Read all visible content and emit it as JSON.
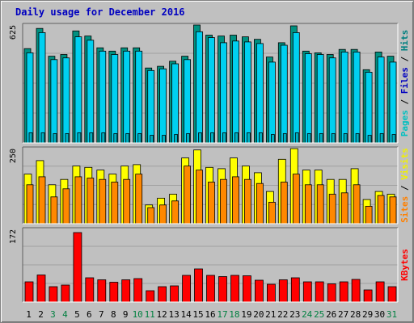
{
  "chart_data": {
    "type": "bar",
    "title": "Daily usage for December 2016",
    "categories": [
      "1",
      "2",
      "3",
      "4",
      "5",
      "6",
      "7",
      "8",
      "9",
      "10",
      "11",
      "12",
      "13",
      "14",
      "15",
      "16",
      "17",
      "18",
      "19",
      "20",
      "21",
      "22",
      "23",
      "24",
      "25",
      "26",
      "27",
      "28",
      "29",
      "30",
      "31"
    ],
    "weekend_days": [
      3,
      4,
      10,
      11,
      17,
      18,
      24,
      25,
      31
    ],
    "colors": {
      "hits": "#009080",
      "files": "#00d0f0",
      "pages": "#00b0c0",
      "visits": "#ffff00",
      "sites": "#ff8800",
      "kbytes": "#ff0000",
      "weekend_label": "#008040",
      "weekday_label": "#000000",
      "pages_label": "#00c0c0",
      "files_label": "#0000c0",
      "hits_label": "#008080",
      "sites_label": "#ff8000",
      "visits_label": "#f0f000",
      "kbytes_label": "#ff0000"
    },
    "panels": [
      {
        "id": "hits-files-pages",
        "ytick": "625",
        "ymax": 700,
        "ylabel_segments": [
          {
            "text": "Pages",
            "color_key": "pages_label"
          },
          {
            "text": " / ",
            "color_key": "weekday_label"
          },
          {
            "text": "Files",
            "color_key": "files_label"
          },
          {
            "text": " / ",
            "color_key": "weekday_label"
          },
          {
            "text": "Hits",
            "color_key": "hits_label"
          }
        ],
        "series": [
          {
            "name": "Hits",
            "color_key": "hits",
            "values": [
              560,
              680,
              515,
              525,
              665,
              635,
              565,
              545,
              565,
              565,
              445,
              455,
              485,
              515,
              700,
              640,
              635,
              640,
              630,
              615,
              510,
              595,
              695,
              545,
              535,
              525,
              555,
              555,
              435,
              540,
              515
            ]
          },
          {
            "name": "Files",
            "color_key": "files",
            "values": [
              535,
              655,
              495,
              505,
              630,
              610,
              545,
              525,
              545,
              545,
              430,
              440,
              470,
              495,
              660,
              625,
              595,
              605,
              600,
              590,
              480,
              580,
              655,
              530,
              525,
              505,
              540,
              540,
              420,
              510,
              480
            ]
          },
          {
            "name": "Pages",
            "color_key": "pages",
            "values": [
              60,
              60,
              55,
              55,
              60,
              60,
              60,
              55,
              55,
              55,
              45,
              45,
              50,
              55,
              60,
              60,
              60,
              60,
              60,
              60,
              50,
              55,
              60,
              55,
              55,
              55,
              55,
              55,
              45,
              55,
              50
            ]
          }
        ]
      },
      {
        "id": "visits-sites",
        "ytick": "250",
        "ymax": 280,
        "ylabel_segments": [
          {
            "text": "Sites",
            "color_key": "sites_label"
          },
          {
            "text": " / ",
            "color_key": "weekday_label"
          },
          {
            "text": "Visits",
            "color_key": "visits_label"
          }
        ],
        "series": [
          {
            "name": "Visits",
            "color_key": "visits",
            "values": [
              185,
              235,
              145,
              165,
              215,
              210,
              200,
              185,
              215,
              220,
              70,
              95,
              110,
              245,
              275,
              210,
              205,
              245,
              215,
              190,
              120,
              240,
              280,
              200,
              200,
              165,
              165,
              205,
              90,
              120,
              110
            ]
          },
          {
            "name": "Sites",
            "color_key": "sites",
            "values": [
              145,
              175,
              100,
              130,
              175,
              170,
              165,
              155,
              165,
              185,
              60,
              70,
              85,
              215,
              200,
              155,
              165,
              175,
              165,
              150,
              80,
              155,
              185,
              145,
              145,
              110,
              115,
              145,
              65,
              105,
              100
            ]
          }
        ]
      },
      {
        "id": "kbytes",
        "ytick": "172",
        "ymax": 180,
        "ylabel_segments": [
          {
            "text": "KBytes",
            "color_key": "kbytes_label"
          }
        ],
        "series": [
          {
            "name": "KBytes",
            "color_key": "kbytes",
            "values": [
              50,
              67,
              38,
              42,
              172,
              60,
              55,
              49,
              55,
              58,
              28,
              38,
              40,
              66,
              82,
              66,
              63,
              66,
              65,
              54,
              44,
              55,
              60,
              50,
              50,
              45,
              50,
              56,
              30,
              50,
              38
            ]
          }
        ]
      }
    ]
  }
}
